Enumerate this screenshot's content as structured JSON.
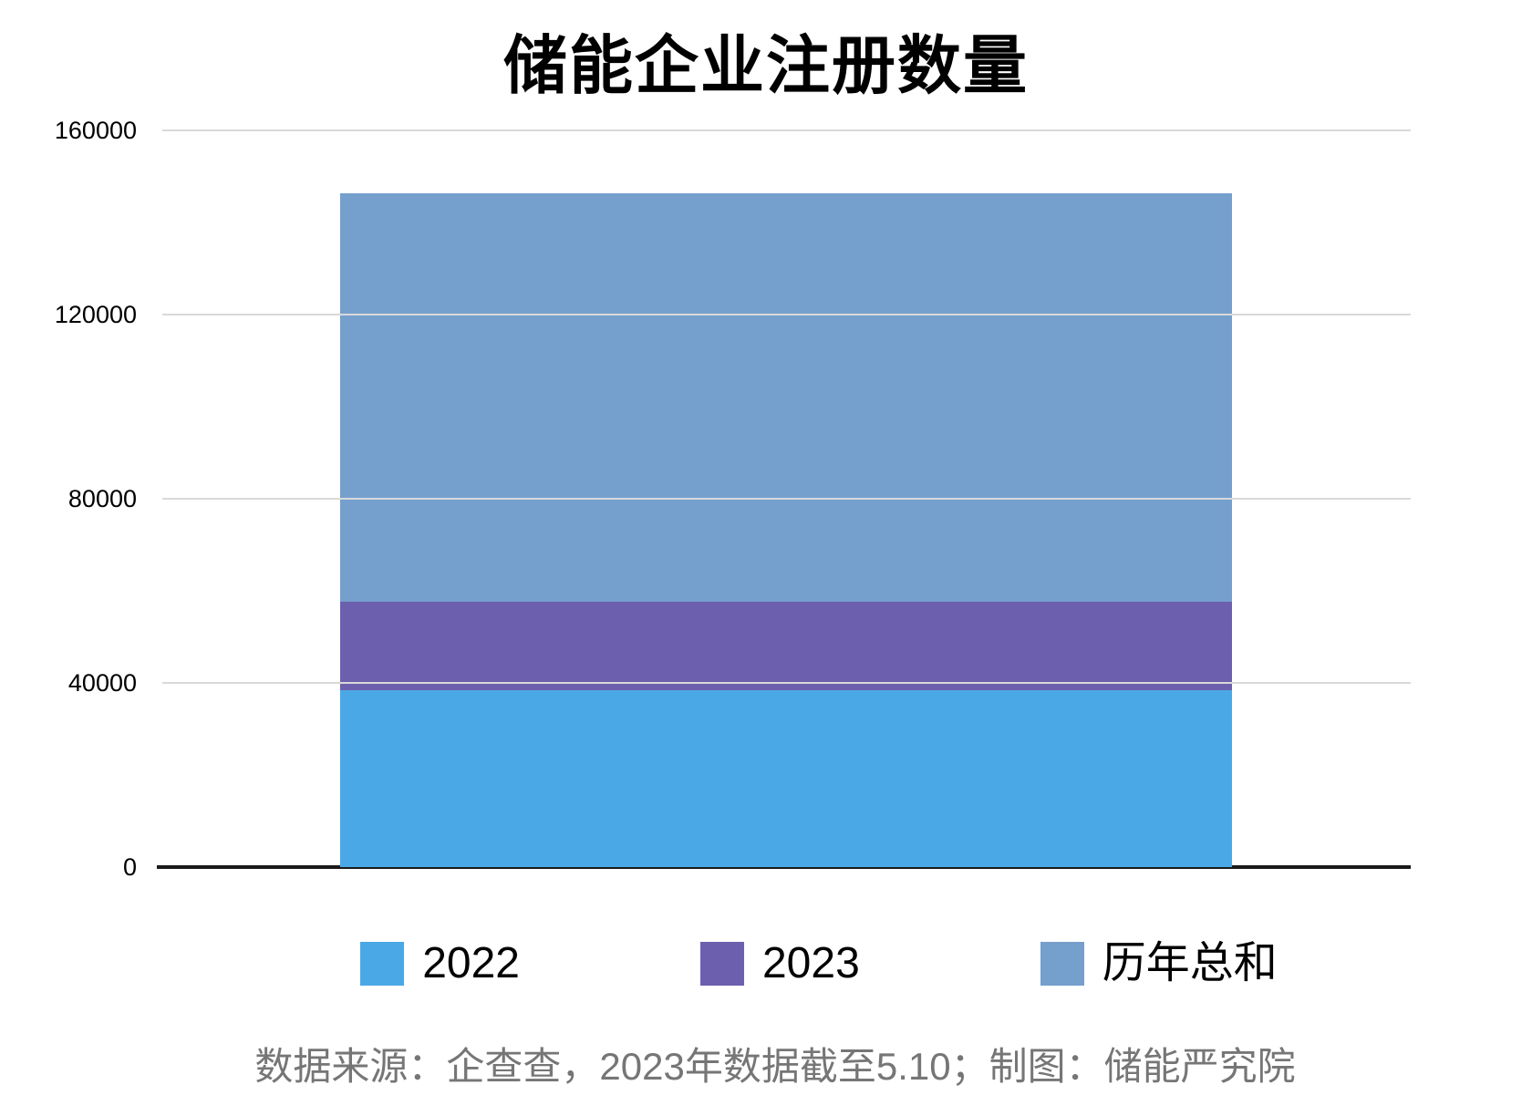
{
  "chart": {
    "title": "储能企业注册数量",
    "source_note": "数据来源：企查查，2023年数据截至5.10；制图：储能严究院"
  },
  "chart_data": {
    "type": "bar",
    "subtype": "single-stacked-column",
    "title": "储能企业注册数量",
    "categories": [
      ""
    ],
    "series": [
      {
        "name": "2022",
        "value": 38500,
        "color": "#4BA8E6"
      },
      {
        "name": "2023",
        "value": 19100,
        "color": "#6C60AE"
      },
      {
        "name": "历年总和",
        "value": 88800,
        "color": "#759FCD"
      }
    ],
    "stack_boundaries": [
      0,
      38500,
      57600,
      146400
    ],
    "stack_total": 146400,
    "xlabel": "",
    "ylabel": "",
    "ylim": [
      0,
      160000
    ],
    "y_ticks": [
      0,
      40000,
      80000,
      120000,
      160000
    ],
    "grid": true,
    "gridline_color": "#d9d9d9",
    "axis_line_color": "#1a1a1a",
    "legend_position": "bottom",
    "source_note": "数据来源：企查查，2023年数据截至5.10；制图：储能严究院",
    "source_note_color": "#767676"
  }
}
